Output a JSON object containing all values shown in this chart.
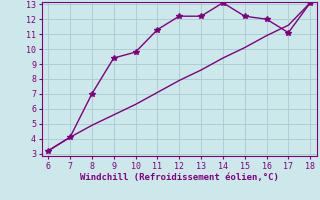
{
  "line1_x": [
    6,
    7,
    8,
    9,
    10,
    11,
    12,
    13,
    14,
    15,
    16,
    17,
    18
  ],
  "line1_y": [
    3.2,
    4.1,
    7.0,
    9.4,
    9.8,
    11.3,
    12.2,
    12.2,
    13.1,
    12.2,
    12.0,
    11.1,
    13.1
  ],
  "line2_x": [
    6,
    7,
    8,
    9,
    10,
    11,
    12,
    13,
    14,
    15,
    16,
    17,
    18
  ],
  "line2_y": [
    3.2,
    4.1,
    4.9,
    5.6,
    6.3,
    7.1,
    7.9,
    8.6,
    9.4,
    10.1,
    10.9,
    11.6,
    13.1
  ],
  "color": "#800080",
  "bg_color": "#cce8ea",
  "grid_color": "#aacfd2",
  "xlabel": "Windchill (Refroidissement éolien,°C)",
  "xlim": [
    6,
    18
  ],
  "ylim": [
    3,
    13
  ],
  "xticks": [
    6,
    7,
    8,
    9,
    10,
    11,
    12,
    13,
    14,
    15,
    16,
    17,
    18
  ],
  "yticks": [
    3,
    4,
    5,
    6,
    7,
    8,
    9,
    10,
    11,
    12,
    13
  ],
  "tick_color": "#800080",
  "label_color": "#800080",
  "marker": "*",
  "markersize": 4,
  "linewidth": 1.0
}
